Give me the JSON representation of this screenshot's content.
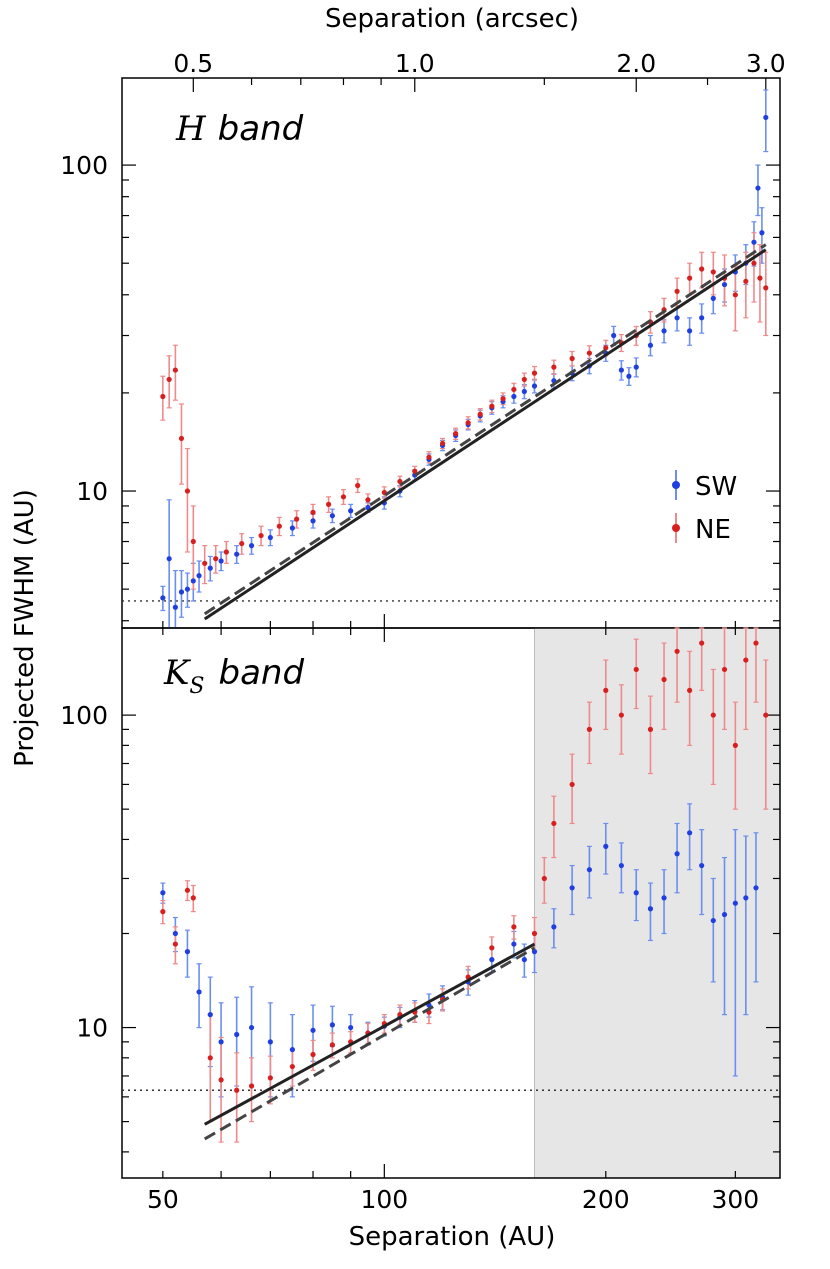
{
  "figure": {
    "top_axis_title": "Separation (arcsec)",
    "bottom_axis_title": "Separation (AU)",
    "y_axis_title": "Projected FWHM (AU)"
  },
  "colors": {
    "sw_point": "#1f3fe0",
    "sw_err": "#6a8ff0",
    "ne_point": "#d81f1f",
    "ne_err": "#f08a8a",
    "fit_solid": "#222222",
    "fit_dashed": "#444444",
    "shade": "#e6e6e6"
  },
  "chart_data": [
    {
      "type": "scatter",
      "panel": "top",
      "band_label_math": "H",
      "band_label_word": "band",
      "xscale": "log",
      "yscale": "log",
      "xlim": [
        44,
        345
      ],
      "ylim": [
        3.8,
        185
      ],
      "xlabel": "",
      "ylabel": "Projected FWHM (AU)",
      "top_axis": {
        "label": "Separation (arcsec)",
        "ticks": [
          "0.5",
          "1.0",
          "2.0",
          "3.0"
        ],
        "tick_au": [
          55,
          110,
          220,
          330
        ]
      },
      "yticks": [
        10,
        100
      ],
      "ytick_labels": [
        "10",
        "100"
      ],
      "legend": {
        "position": "right",
        "entries": [
          "SW",
          "NE"
        ]
      },
      "noise_level": 4.6,
      "series": [
        {
          "name": "SW",
          "points": [
            [
              50,
              4.7,
              0.4
            ],
            [
              51,
              6.2,
              3.2
            ],
            [
              52,
              4.4,
              1.3
            ],
            [
              53,
              4.9,
              0.8
            ],
            [
              54,
              5.0,
              0.6
            ],
            [
              55,
              5.3,
              0.7
            ],
            [
              56,
              5.5,
              0.6
            ],
            [
              58,
              5.8,
              0.5
            ],
            [
              60,
              6.1,
              0.4
            ],
            [
              63,
              6.4,
              0.4
            ],
            [
              66,
              6.8,
              0.4
            ],
            [
              70,
              7.2,
              0.4
            ],
            [
              75,
              7.7,
              0.4
            ],
            [
              80,
              8.1,
              0.4
            ],
            [
              85,
              8.4,
              0.4
            ],
            [
              90,
              8.7,
              0.4
            ],
            [
              95,
              8.9,
              0.3
            ],
            [
              100,
              9.2,
              0.4
            ],
            [
              105,
              10.0,
              0.4
            ],
            [
              110,
              11.2,
              0.4
            ],
            [
              115,
              12.5,
              0.5
            ],
            [
              120,
              13.8,
              0.5
            ],
            [
              125,
              14.8,
              0.6
            ],
            [
              130,
              16.0,
              0.6
            ],
            [
              135,
              17.0,
              0.7
            ],
            [
              140,
              18.0,
              0.8
            ],
            [
              145,
              18.8,
              0.8
            ],
            [
              150,
              19.5,
              0.9
            ],
            [
              155,
              20.2,
              1.0
            ],
            [
              160,
              21.0,
              1.0
            ],
            [
              170,
              21.8,
              1.1
            ],
            [
              180,
              23.0,
              1.2
            ],
            [
              190,
              24.2,
              1.3
            ],
            [
              200,
              26.5,
              1.5
            ],
            [
              205,
              30.0,
              2.0
            ],
            [
              210,
              23.5,
              1.6
            ],
            [
              215,
              22.5,
              1.4
            ],
            [
              220,
              24.0,
              1.6
            ],
            [
              230,
              28.0,
              2.0
            ],
            [
              240,
              31.0,
              2.5
            ],
            [
              250,
              34.0,
              3.0
            ],
            [
              260,
              31.0,
              3.0
            ],
            [
              270,
              34.0,
              3.5
            ],
            [
              280,
              39.0,
              4.0
            ],
            [
              290,
              43.0,
              5.0
            ],
            [
              300,
              47.0,
              6.0
            ],
            [
              310,
              50.0,
              7.0
            ],
            [
              318,
              58.0,
              9.0
            ],
            [
              322,
              85.0,
              15.0
            ],
            [
              326,
              62.0,
              12.0
            ],
            [
              330,
              140.0,
              30.0
            ]
          ]
        },
        {
          "name": "NE",
          "points": [
            [
              50,
              19.5,
              3.0
            ],
            [
              51,
              22.0,
              4.0
            ],
            [
              52,
              23.5,
              4.5
            ],
            [
              53,
              14.5,
              4.0
            ],
            [
              54,
              10.0,
              3.5
            ],
            [
              55,
              7.0,
              2.0
            ],
            [
              57,
              6.0,
              0.8
            ],
            [
              59,
              6.2,
              0.6
            ],
            [
              61,
              6.5,
              0.5
            ],
            [
              64,
              6.9,
              0.5
            ],
            [
              68,
              7.3,
              0.5
            ],
            [
              72,
              7.8,
              0.5
            ],
            [
              76,
              8.2,
              0.5
            ],
            [
              80,
              8.6,
              0.5
            ],
            [
              84,
              9.1,
              0.5
            ],
            [
              88,
              9.6,
              0.5
            ],
            [
              92,
              10.4,
              0.5
            ],
            [
              95,
              9.4,
              0.4
            ],
            [
              100,
              9.9,
              0.4
            ],
            [
              105,
              10.7,
              0.4
            ],
            [
              110,
              11.5,
              0.4
            ],
            [
              115,
              12.7,
              0.5
            ],
            [
              120,
              14.0,
              0.5
            ],
            [
              125,
              15.0,
              0.6
            ],
            [
              130,
              16.2,
              0.7
            ],
            [
              135,
              17.2,
              0.7
            ],
            [
              140,
              18.2,
              0.8
            ],
            [
              145,
              19.2,
              0.8
            ],
            [
              150,
              20.5,
              0.9
            ],
            [
              155,
              22.0,
              1.0
            ],
            [
              160,
              23.0,
              1.1
            ],
            [
              170,
              24.0,
              1.2
            ],
            [
              180,
              25.5,
              1.3
            ],
            [
              190,
              26.5,
              1.4
            ],
            [
              200,
              27.5,
              1.5
            ],
            [
              210,
              28.5,
              1.7
            ],
            [
              220,
              30.0,
              2.0
            ],
            [
              230,
              33.0,
              2.5
            ],
            [
              240,
              36.0,
              3.0
            ],
            [
              250,
              41.0,
              4.0
            ],
            [
              260,
              45.0,
              5.0
            ],
            [
              270,
              48.0,
              6.0
            ],
            [
              280,
              47.0,
              7.0
            ],
            [
              290,
              45.0,
              8.0
            ],
            [
              300,
              40.0,
              9.0
            ],
            [
              310,
              44.0,
              10.0
            ],
            [
              318,
              50.0,
              12.0
            ],
            [
              324,
              45.0,
              12.0
            ],
            [
              330,
              42.0,
              12.0
            ]
          ]
        }
      ],
      "fits": [
        {
          "style": "solid",
          "x": [
            57,
            330
          ],
          "y": [
            4.05,
            55.0
          ]
        },
        {
          "style": "dashed",
          "x": [
            57,
            330
          ],
          "y": [
            4.2,
            57.0
          ]
        }
      ]
    },
    {
      "type": "scatter",
      "panel": "bottom",
      "band_label_math": "K",
      "band_label_sub": "S",
      "band_label_word": "band",
      "xscale": "log",
      "yscale": "log",
      "xlim": [
        44,
        345
      ],
      "ylim": [
        3.3,
        190
      ],
      "xlabel": "Separation (AU)",
      "ylabel": "Projected FWHM (AU)",
      "xticks": [
        50,
        100,
        200,
        300
      ],
      "xtick_labels": [
        "50",
        "100",
        "200",
        "300"
      ],
      "yticks": [
        10,
        100
      ],
      "ytick_labels": [
        "10",
        "100"
      ],
      "shaded_region_x": [
        160,
        345
      ],
      "noise_level": 6.3,
      "series": [
        {
          "name": "SW",
          "points": [
            [
              50,
              27.0,
              2.0
            ],
            [
              52,
              20.0,
              2.5
            ],
            [
              54,
              17.5,
              3.0
            ],
            [
              56,
              13.0,
              3.0
            ],
            [
              58,
              11.0,
              3.5
            ],
            [
              60,
              9.0,
              3.0
            ],
            [
              63,
              9.5,
              3.0
            ],
            [
              66,
              10.0,
              3.5
            ],
            [
              70,
              9.0,
              3.0
            ],
            [
              75,
              8.5,
              2.5
            ],
            [
              80,
              9.8,
              2.0
            ],
            [
              85,
              10.2,
              1.5
            ],
            [
              90,
              10.0,
              1.0
            ],
            [
              95,
              9.6,
              0.8
            ],
            [
              100,
              10.1,
              0.7
            ],
            [
              105,
              10.8,
              0.8
            ],
            [
              110,
              11.3,
              0.9
            ],
            [
              115,
              11.8,
              1.0
            ],
            [
              120,
              12.5,
              1.1
            ],
            [
              130,
              14.0,
              1.3
            ],
            [
              140,
              16.5,
              1.5
            ],
            [
              150,
              18.5,
              1.8
            ],
            [
              155,
              16.5,
              2.0
            ],
            [
              160,
              17.5,
              2.5
            ],
            [
              170,
              21.0,
              3.0
            ],
            [
              180,
              28.0,
              5.0
            ],
            [
              190,
              32.0,
              6.0
            ],
            [
              200,
              38.0,
              7.0
            ],
            [
              210,
              33.0,
              6.0
            ],
            [
              220,
              27.0,
              5.0
            ],
            [
              230,
              24.0,
              5.0
            ],
            [
              240,
              26.0,
              6.0
            ],
            [
              250,
              36.0,
              9.0
            ],
            [
              260,
              42.0,
              10.0
            ],
            [
              270,
              33.0,
              10.0
            ],
            [
              280,
              22.0,
              8.0
            ],
            [
              290,
              23.0,
              12.0
            ],
            [
              300,
              25.0,
              18.0
            ],
            [
              310,
              26.0,
              15.0
            ],
            [
              320,
              28.0,
              14.0
            ]
          ]
        },
        {
          "name": "NE",
          "points": [
            [
              50,
              23.5,
              2.0
            ],
            [
              52,
              18.5,
              2.5
            ],
            [
              54,
              27.5,
              2.0
            ],
            [
              55,
              26.0,
              2.5
            ],
            [
              58,
              8.0,
              3.0
            ],
            [
              60,
              6.8,
              2.5
            ],
            [
              63,
              6.3,
              2.0
            ],
            [
              66,
              6.5,
              1.5
            ],
            [
              70,
              6.9,
              1.2
            ],
            [
              75,
              7.5,
              1.0
            ],
            [
              80,
              8.2,
              0.9
            ],
            [
              85,
              8.8,
              0.8
            ],
            [
              90,
              9.0,
              0.7
            ],
            [
              95,
              9.6,
              0.7
            ],
            [
              100,
              10.3,
              0.7
            ],
            [
              105,
              11.0,
              0.8
            ],
            [
              110,
              11.2,
              0.8
            ],
            [
              115,
              11.2,
              0.9
            ],
            [
              120,
              12.3,
              1.0
            ],
            [
              130,
              14.5,
              1.2
            ],
            [
              140,
              18.0,
              1.5
            ],
            [
              150,
              21.0,
              1.8
            ],
            [
              160,
              20.0,
              2.5
            ],
            [
              165,
              30.0,
              5.0
            ],
            [
              170,
              45.0,
              10.0
            ],
            [
              180,
              60.0,
              15.0
            ],
            [
              190,
              90.0,
              20.0
            ],
            [
              200,
              120.0,
              30.0
            ],
            [
              210,
              100.0,
              25.0
            ],
            [
              220,
              140.0,
              35.0
            ],
            [
              230,
              90.0,
              25.0
            ],
            [
              240,
              130.0,
              40.0
            ],
            [
              250,
              160.0,
              50.0
            ],
            [
              260,
              120.0,
              40.0
            ],
            [
              270,
              170.0,
              50.0
            ],
            [
              280,
              100.0,
              40.0
            ],
            [
              290,
              140.0,
              50.0
            ],
            [
              300,
              80.0,
              30.0
            ],
            [
              310,
              150.0,
              60.0
            ],
            [
              320,
              170.0,
              60.0
            ],
            [
              330,
              100.0,
              50.0
            ]
          ]
        }
      ],
      "fits": [
        {
          "style": "solid",
          "x": [
            57,
            160
          ],
          "y": [
            4.9,
            18.5
          ]
        },
        {
          "style": "dashed",
          "x": [
            57,
            160
          ],
          "y": [
            4.4,
            18.0
          ]
        }
      ]
    }
  ]
}
